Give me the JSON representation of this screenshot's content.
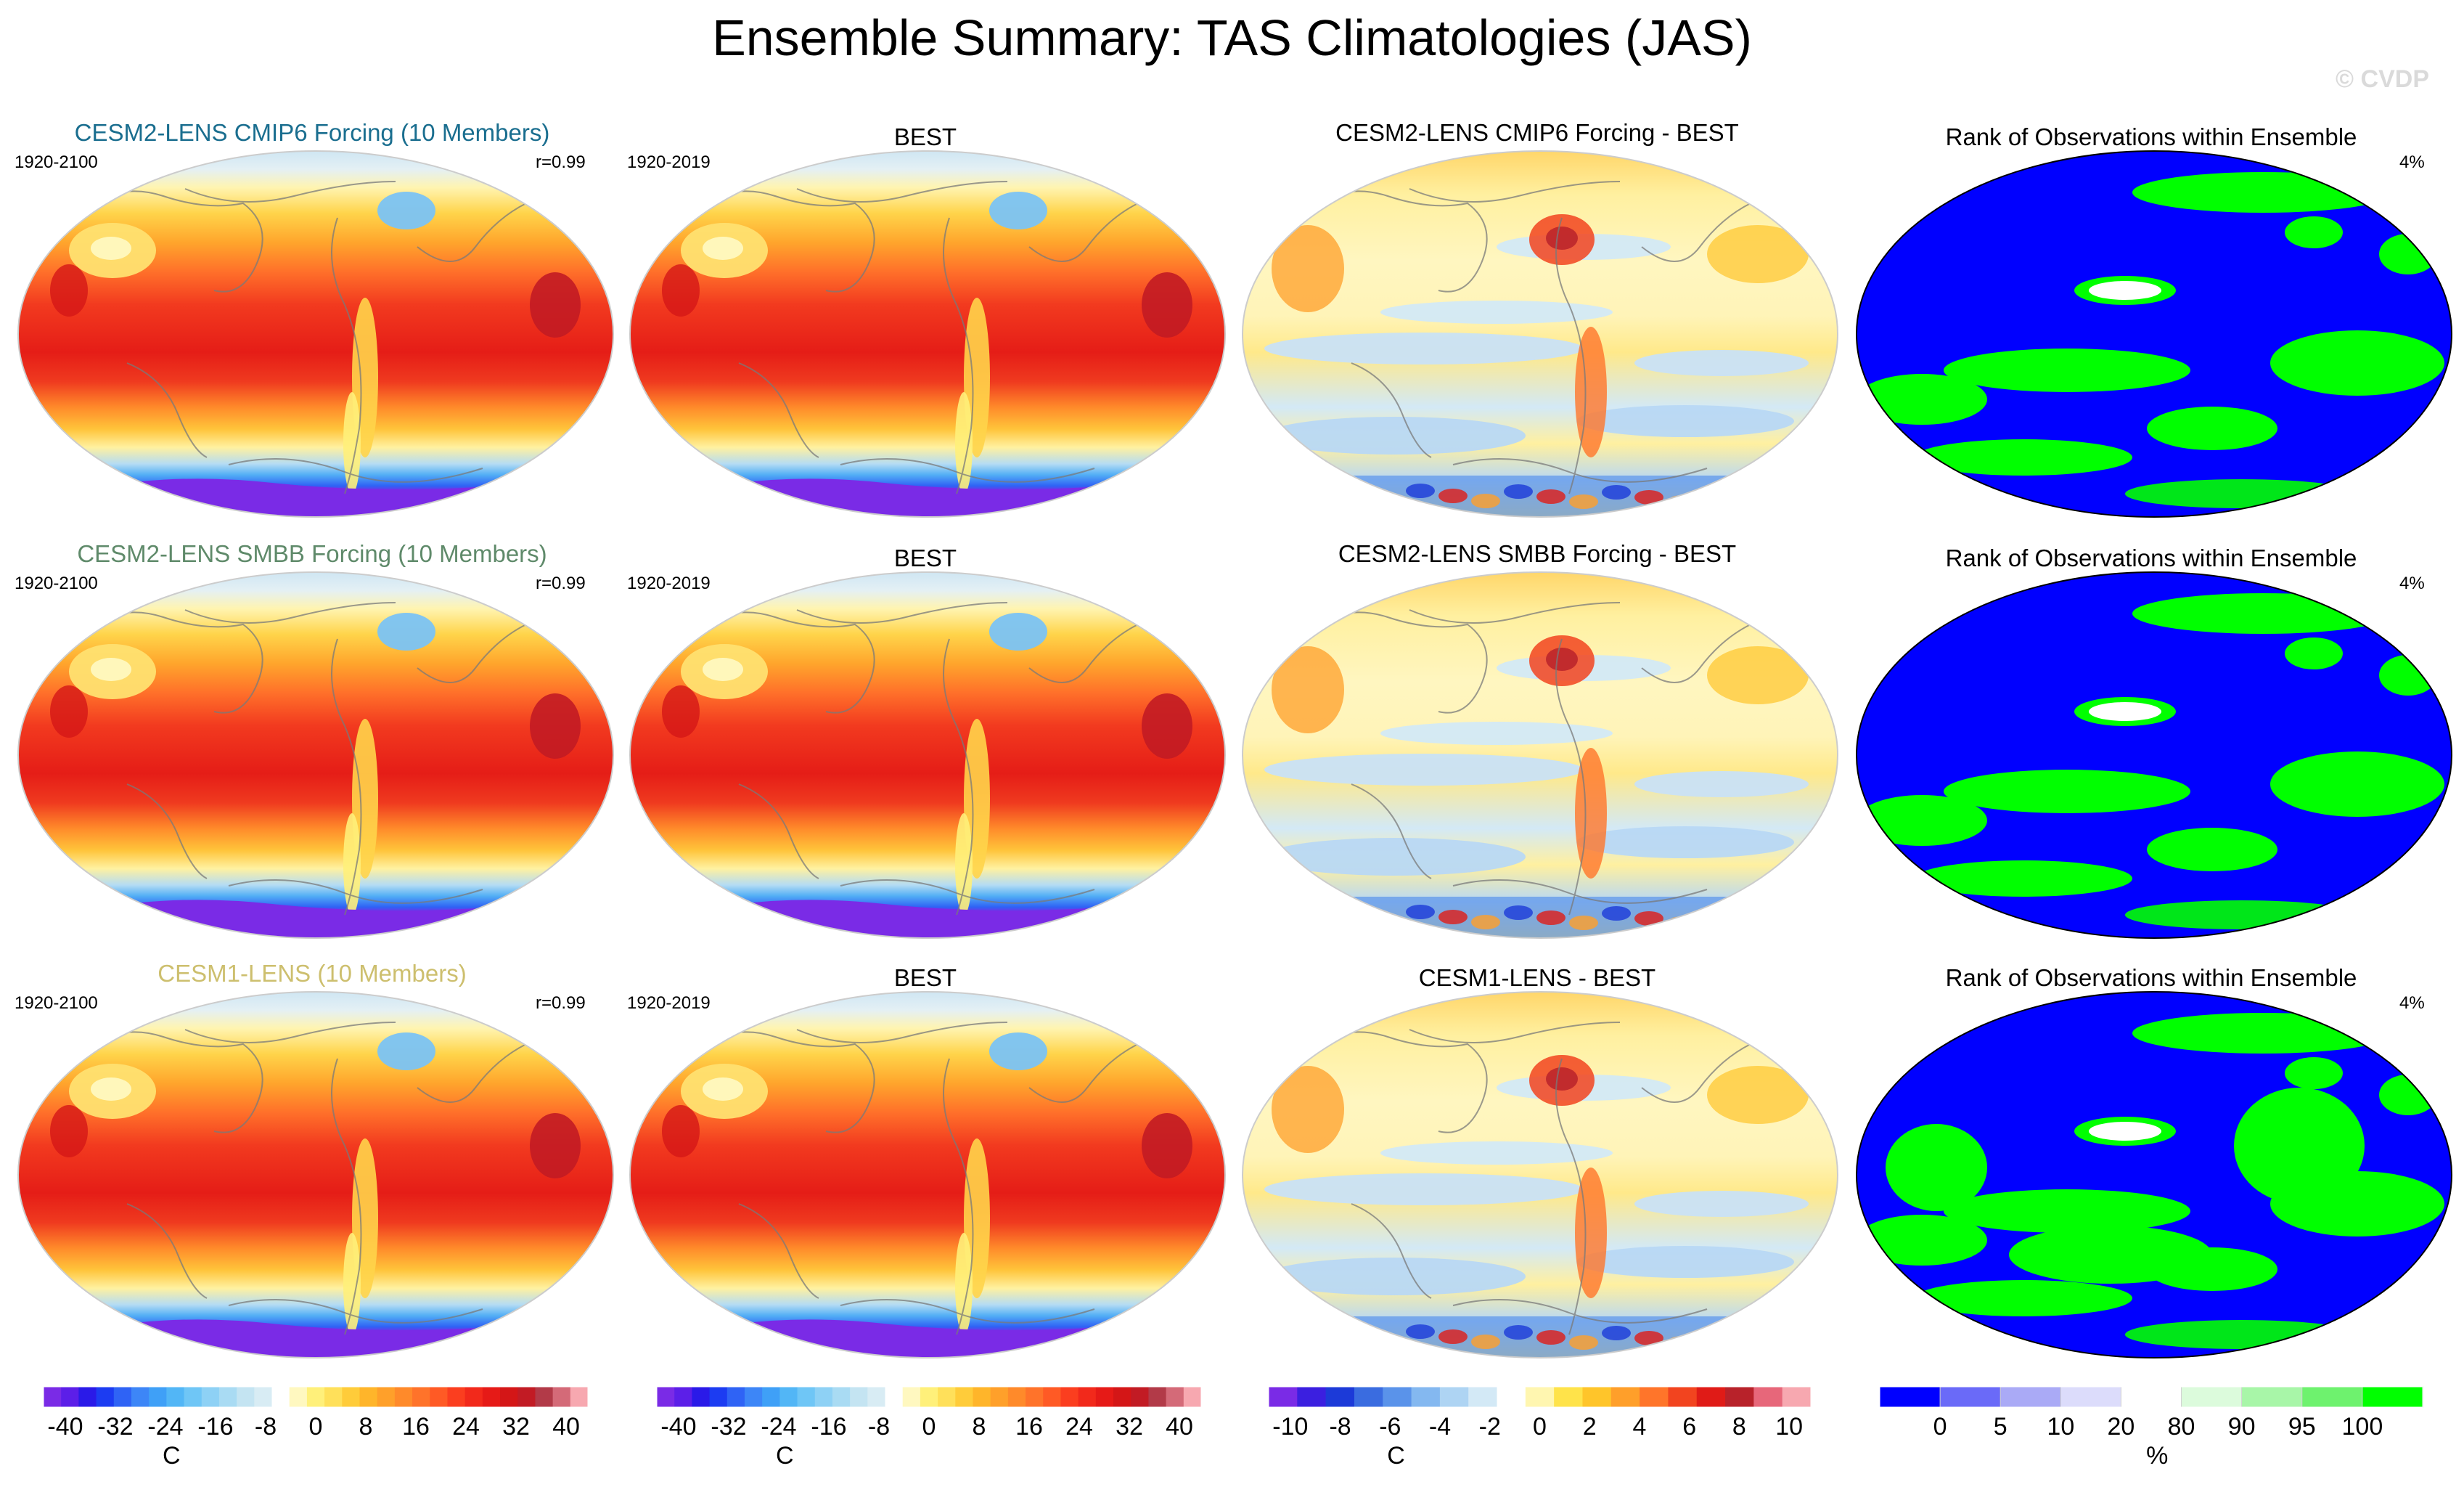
{
  "title": "Ensemble Summary: TAS Climatologies (JAS)",
  "watermark": "© CVDP",
  "rows": [
    {
      "model": {
        "title": "CESM2-LENS CMIP6 Forcing (10 Members)",
        "title_color": "#1a6e8f",
        "period": "1920-2100",
        "corr": "r=0.99"
      },
      "obs": {
        "title": "BEST",
        "period": "1920-2019"
      },
      "diff": {
        "title": "CESM2-LENS CMIP6 Forcing - BEST"
      },
      "rank": {
        "title": "Rank of Observations within Ensemble",
        "percent": "4%"
      }
    },
    {
      "model": {
        "title": "CESM2-LENS SMBB Forcing (10 Members)",
        "title_color": "#5f8a6a",
        "period": "1920-2100",
        "corr": "r=0.99"
      },
      "obs": {
        "title": "BEST",
        "period": "1920-2019"
      },
      "diff": {
        "title": "CESM2-LENS SMBB Forcing - BEST"
      },
      "rank": {
        "title": "Rank of Observations within Ensemble",
        "percent": "4%"
      }
    },
    {
      "model": {
        "title": "CESM1-LENS (10 Members)",
        "title_color": "#cdbf6e",
        "period": "1920-2100",
        "corr": "r=0.99"
      },
      "obs": {
        "title": "BEST",
        "period": "1920-2019"
      },
      "diff": {
        "title": "CESM1-LENS - BEST"
      },
      "rank": {
        "title": "Rank of Observations within Ensemble",
        "percent": "4%"
      }
    }
  ],
  "colorbars": [
    {
      "unit": "C",
      "ticks": [
        "-40",
        "-32",
        "-24",
        "-16",
        "-8",
        "0",
        "8",
        "16",
        "24",
        "32",
        "40"
      ],
      "colors": [
        "#7a2be6",
        "#5c1fe8",
        "#2a1ae8",
        "#1c3cf2",
        "#2f63f5",
        "#3d86f7",
        "#3fa0f7",
        "#52b6f6",
        "#6fc6f6",
        "#8ed1f5",
        "#a9dbf3",
        "#c4e4f2",
        "#d8ecf4",
        "#ffffff",
        "#fff8c0",
        "#fff07a",
        "#ffe05a",
        "#ffcc3a",
        "#ffb52a",
        "#ffa02a",
        "#ff8a2a",
        "#ff732a",
        "#ff5a25",
        "#fb3e1f",
        "#f2291b",
        "#e61a17",
        "#d41617",
        "#c21b24",
        "#b23a48",
        "#d46a78",
        "#f7a8b0"
      ]
    },
    {
      "unit": "C",
      "ticks": [
        "-40",
        "-32",
        "-24",
        "-16",
        "-8",
        "0",
        "8",
        "16",
        "24",
        "32",
        "40"
      ],
      "colors": [
        "#7a2be6",
        "#5c1fe8",
        "#2a1ae8",
        "#1c3cf2",
        "#2f63f5",
        "#3d86f7",
        "#3fa0f7",
        "#52b6f6",
        "#6fc6f6",
        "#8ed1f5",
        "#a9dbf3",
        "#c4e4f2",
        "#d8ecf4",
        "#ffffff",
        "#fff8c0",
        "#fff07a",
        "#ffe05a",
        "#ffcc3a",
        "#ffb52a",
        "#ffa02a",
        "#ff8a2a",
        "#ff732a",
        "#ff5a25",
        "#fb3e1f",
        "#f2291b",
        "#e61a17",
        "#d41617",
        "#c21b24",
        "#b23a48",
        "#d46a78",
        "#f7a8b0"
      ]
    },
    {
      "unit": "C",
      "ticks": [
        "-10",
        "-8",
        "-6",
        "-4",
        "-2",
        "0",
        "2",
        "4",
        "6",
        "8",
        "10"
      ],
      "colors": [
        "#7a2be6",
        "#3b1fe0",
        "#1c3ad8",
        "#3a6ce0",
        "#5a93ea",
        "#84b8f0",
        "#aed4f3",
        "#d3e9f6",
        "#ffffff",
        "#fff6b0",
        "#ffe34a",
        "#ffc52a",
        "#ff9f2a",
        "#ff752a",
        "#f2441f",
        "#e01b17",
        "#b8222a",
        "#e7677a",
        "#f7a8b0"
      ]
    },
    {
      "unit": "%",
      "ticks": [
        "0",
        "5",
        "10",
        "20",
        "80",
        "90",
        "95",
        "100"
      ],
      "colors": [
        "#0000ff",
        "#6a6af8",
        "#aaaaf6",
        "#dcdcfb",
        "#ffffff",
        "#dcfbdc",
        "#a8f6a8",
        "#6ef26e",
        "#00ff00"
      ]
    }
  ],
  "chart_data": [
    {
      "type": "heatmap",
      "title": "CESM2-LENS CMIP6 Forcing (10 Members)",
      "subtitle": "1920-2100",
      "stat": "r=0.99",
      "colorbar_unit": "C",
      "range": [
        -40,
        40
      ]
    },
    {
      "type": "heatmap",
      "title": "BEST",
      "subtitle": "1920-2019",
      "colorbar_unit": "C",
      "range": [
        -40,
        40
      ]
    },
    {
      "type": "heatmap",
      "title": "CESM2-LENS CMIP6 Forcing - BEST",
      "colorbar_unit": "C",
      "range": [
        -10,
        10
      ]
    },
    {
      "type": "heatmap",
      "title": "Rank of Observations within Ensemble",
      "stat": "4%",
      "colorbar_unit": "%",
      "levels": [
        0,
        5,
        10,
        20,
        80,
        90,
        95,
        100
      ]
    },
    {
      "type": "heatmap",
      "title": "CESM2-LENS SMBB Forcing (10 Members)",
      "subtitle": "1920-2100",
      "stat": "r=0.99",
      "colorbar_unit": "C",
      "range": [
        -40,
        40
      ]
    },
    {
      "type": "heatmap",
      "title": "BEST",
      "subtitle": "1920-2019",
      "colorbar_unit": "C",
      "range": [
        -40,
        40
      ]
    },
    {
      "type": "heatmap",
      "title": "CESM2-LENS SMBB Forcing - BEST",
      "colorbar_unit": "C",
      "range": [
        -10,
        10
      ]
    },
    {
      "type": "heatmap",
      "title": "Rank of Observations within Ensemble",
      "stat": "4%",
      "colorbar_unit": "%",
      "levels": [
        0,
        5,
        10,
        20,
        80,
        90,
        95,
        100
      ]
    },
    {
      "type": "heatmap",
      "title": "CESM1-LENS (10 Members)",
      "subtitle": "1920-2100",
      "stat": "r=0.99",
      "colorbar_unit": "C",
      "range": [
        -40,
        40
      ]
    },
    {
      "type": "heatmap",
      "title": "BEST",
      "subtitle": "1920-2019",
      "colorbar_unit": "C",
      "range": [
        -40,
        40
      ]
    },
    {
      "type": "heatmap",
      "title": "CESM1-LENS - BEST",
      "colorbar_unit": "C",
      "range": [
        -10,
        10
      ]
    },
    {
      "type": "heatmap",
      "title": "Rank of Observations within Ensemble",
      "stat": "4%",
      "colorbar_unit": "%",
      "levels": [
        0,
        5,
        10,
        20,
        80,
        90,
        95,
        100
      ]
    }
  ]
}
